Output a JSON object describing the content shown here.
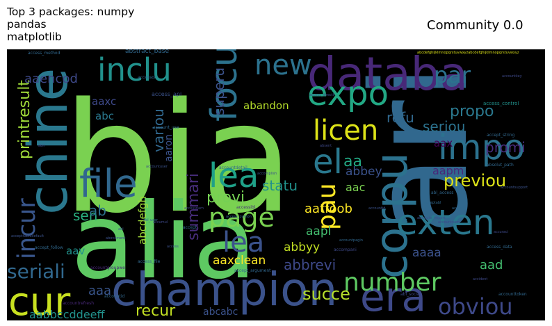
{
  "header": {
    "left_title": "Top 3 packages: numpy\npandas\nmatplotlib",
    "right_title": "Community 0.0"
  },
  "wordcloud": {
    "words": [
      {
        "text": "bia",
        "color": "#7ad151"
      },
      {
        "text": "alia",
        "color": "#5ec962"
      },
      {
        "text": "ari",
        "color": "#31688e"
      },
      {
        "text": "chine",
        "color": "#2a788e"
      },
      {
        "text": "champion",
        "color": "#3b528b"
      },
      {
        "text": "corpu",
        "color": "#2c728e"
      },
      {
        "text": "databa",
        "color": "#482878"
      },
      {
        "text": "expo",
        "color": "#22a884"
      },
      {
        "text": "cur",
        "color": "#c8e020"
      },
      {
        "text": "era",
        "color": "#3e4989"
      },
      {
        "text": "file",
        "color": "#31688e"
      },
      {
        "text": "impo",
        "color": "#2c728e"
      },
      {
        "text": "exten",
        "color": "#2a788e"
      },
      {
        "text": "lea",
        "color": "#1fa088"
      },
      {
        "text": "el",
        "color": "#2a788e"
      },
      {
        "text": "focu",
        "color": "#2c728e"
      },
      {
        "text": "inclu",
        "color": "#21918c"
      },
      {
        "text": "new",
        "color": "#2c728e"
      },
      {
        "text": "page",
        "color": "#7ad151"
      },
      {
        "text": "licen",
        "color": "#dde318"
      },
      {
        "text": "number",
        "color": "#5ec962"
      },
      {
        "text": "incur",
        "color": "#39568c"
      },
      {
        "text": "obviou",
        "color": "#3e4989"
      },
      {
        "text": "seriali",
        "color": "#31688e"
      },
      {
        "text": "lea",
        "color": "#3b528b"
      },
      {
        "text": "pau",
        "color": "#fde725"
      },
      {
        "text": "par",
        "color": "#2c728e"
      },
      {
        "text": "previou",
        "color": "#dde318"
      },
      {
        "text": "promi",
        "color": "#472d7b"
      },
      {
        "text": "propo",
        "color": "#2a788e"
      },
      {
        "text": "printresult",
        "color": "#a0da39"
      },
      {
        "text": "aaencod",
        "color": "#3e4989"
      },
      {
        "text": "superu",
        "color": "#3b528b"
      },
      {
        "text": "variou",
        "color": "#31688e"
      },
      {
        "text": "summari",
        "color": "#472d7b"
      },
      {
        "text": "statu",
        "color": "#21918c"
      },
      {
        "text": "provi",
        "color": "#75d054"
      },
      {
        "text": "succe",
        "color": "#b5de2b"
      },
      {
        "text": "recur",
        "color": "#c2df23"
      },
      {
        "text": "aaxclean",
        "color": "#fde725"
      },
      {
        "text": "abbrevi",
        "color": "#3e4989"
      },
      {
        "text": "aabbccddeeff",
        "color": "#21918c"
      },
      {
        "text": "seriou",
        "color": "#2c728e"
      },
      {
        "text": "refu",
        "color": "#31688e"
      },
      {
        "text": "sen",
        "color": "#29af7f"
      },
      {
        "text": "ab",
        "color": "#2c728e"
      },
      {
        "text": "aa",
        "color": "#22a884"
      },
      {
        "text": "aad",
        "color": "#44bf70"
      },
      {
        "text": "aaa",
        "color": "#39568c"
      },
      {
        "text": "aaaa",
        "color": "#3b528b"
      },
      {
        "text": "aapl",
        "color": "#44bf70"
      },
      {
        "text": "abbyy",
        "color": "#c2df23"
      },
      {
        "text": "aatfoob",
        "color": "#fde725"
      },
      {
        "text": "abcdefgh",
        "color": "#a0da39"
      },
      {
        "text": "aac",
        "color": "#7ad151"
      },
      {
        "text": "abbey",
        "color": "#3b528b"
      },
      {
        "text": "aapm",
        "color": "#482878"
      },
      {
        "text": "aav",
        "color": "#21918c"
      },
      {
        "text": "aax",
        "color": "#440154"
      },
      {
        "text": "aaxc",
        "color": "#3e4989"
      },
      {
        "text": "abc",
        "color": "#2a788e"
      },
      {
        "text": "aaron",
        "color": "#3b528b"
      },
      {
        "text": "abandon",
        "color": "#b5de2b"
      },
      {
        "text": "abcabc",
        "color": "#3b528b"
      },
      {
        "text": "abstract_base",
        "color": "#31688e"
      },
      {
        "text": "abcdefghijklmnopqrstuvwxyzabcdefghijklmnopqrstuvwxyz",
        "color": "#dde318"
      },
      {
        "text": "access_api",
        "color": "#3b528b"
      },
      {
        "text": "access_control",
        "color": "#21918c"
      },
      {
        "text": "account_use",
        "color": "#31688e"
      },
      {
        "text": "access_directli",
        "color": "#3b528b"
      },
      {
        "text": "accept_follow",
        "color": "#31688e"
      },
      {
        "text": "accountgroupwe",
        "color": "#482878"
      },
      {
        "text": "accountdetail",
        "color": "#31688e"
      },
      {
        "text": "accessibl",
        "color": "#472d7b"
      },
      {
        "text": "accompani",
        "color": "#3e4989"
      },
      {
        "text": "access_data",
        "color": "#31688e"
      },
      {
        "text": "accountrefresh",
        "color": "#482878"
      },
      {
        "text": "accountid",
        "color": "#31688e"
      },
      {
        "text": "access_file",
        "color": "#31688e"
      },
      {
        "text": "abl_social",
        "color": "#3e4989"
      },
      {
        "text": "accounttoken",
        "color": "#31688e"
      },
      {
        "text": "accept_argument",
        "color": "#31688e"
      },
      {
        "text": "accept_string",
        "color": "#31688e"
      },
      {
        "text": "abil",
        "color": "#3e4989"
      },
      {
        "text": "abl",
        "color": "#3b528b"
      },
      {
        "text": "abl_user",
        "color": "#31688e"
      },
      {
        "text": "access",
        "color": "#3b528b"
      },
      {
        "text": "accessor",
        "color": "#31688e"
      },
      {
        "text": "accuraci",
        "color": "#3e4989"
      },
      {
        "text": "accountsupport",
        "color": "#3b528b"
      },
      {
        "text": "accountpagin",
        "color": "#31688e"
      },
      {
        "text": "absent",
        "color": "#3e4989"
      },
      {
        "text": "absolut_path",
        "color": "#31688e"
      },
      {
        "text": "abovement",
        "color": "#3b528b"
      },
      {
        "text": "accept",
        "color": "#31688e"
      },
      {
        "text": "accident",
        "color": "#3e4989"
      },
      {
        "text": "accomplish",
        "color": "#3b528b"
      },
      {
        "text": "accur",
        "color": "#31688e"
      },
      {
        "text": "accountkey",
        "color": "#3e4989"
      },
      {
        "text": "accepttabledefault",
        "color": "#3b528b"
      },
      {
        "text": "access_method",
        "color": "#31688e"
      },
      {
        "text": "accessnam",
        "color": "#3e4989"
      },
      {
        "text": "accountuser",
        "color": "#3b528b"
      },
      {
        "text": "abl_access",
        "color": "#31688e"
      },
      {
        "text": "accumul",
        "color": "#3e4989"
      },
      {
        "text": "absolute_import",
        "color": "#3b528b"
      },
      {
        "text": "access_python",
        "color": "#31688e"
      },
      {
        "text": "accountnam",
        "color": "#3e4989"
      },
      {
        "text": "accountid",
        "color": "#3b528b"
      },
      {
        "text": "acceptabl",
        "color": "#31688e"
      }
    ]
  }
}
